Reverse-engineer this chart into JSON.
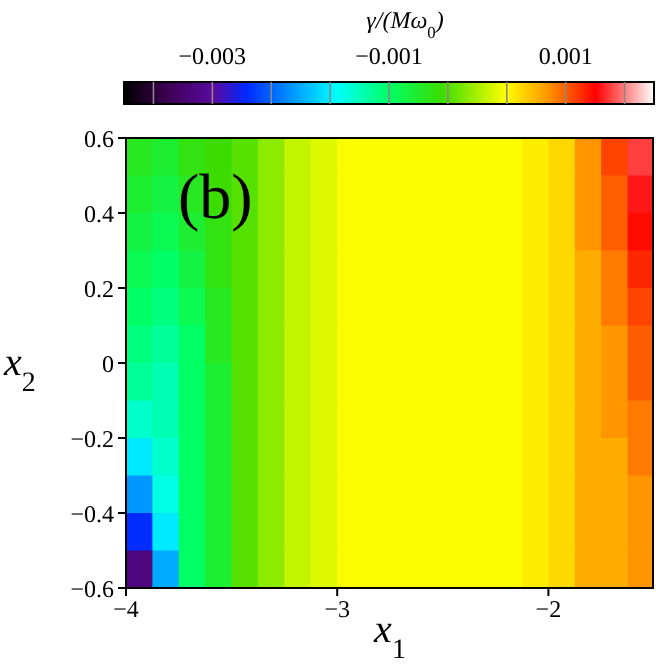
{
  "chart_data": {
    "type": "heatmap",
    "xlabel": "x$_{1}$",
    "ylabel": "x$_{2}$",
    "clabel": "γ/(Mω$_{0}$)",
    "annotations": [
      "(b)"
    ],
    "x": [
      -3.9375,
      -3.8125,
      -3.6875,
      -3.5625,
      -3.4375,
      -3.3125,
      -3.1875,
      -3.0625,
      -2.9375,
      -2.8125,
      -2.6875,
      -2.5625,
      -2.4375,
      -2.3125,
      -2.1875,
      -2.0625,
      -1.9375,
      -1.8125,
      -1.6875,
      -1.5625
    ],
    "y": [
      0.55,
      0.45,
      0.35,
      0.25,
      0.15,
      0.05,
      -0.05,
      -0.15,
      -0.25,
      -0.35,
      -0.45,
      -0.55
    ],
    "xlim": [
      -4,
      -1.5
    ],
    "xticks": [
      {
        "value": -4,
        "label": "−4"
      },
      {
        "value": -3,
        "label": "−3"
      },
      {
        "value": -2,
        "label": "−2"
      }
    ],
    "ylim": [
      -0.6,
      0.6
    ],
    "yticks": [
      {
        "value": -0.6,
        "label": "−0.6"
      },
      {
        "value": -0.4,
        "label": "−0.4"
      },
      {
        "value": -0.2,
        "label": "−0.2"
      },
      0,
      0.2,
      0.4,
      0.6
    ],
    "clim": [
      -0.004,
      0.002
    ],
    "cticks": [
      {
        "value": -0.003,
        "label": "−0.003"
      },
      {
        "value": -0.001,
        "label": "−0.001"
      },
      0.001
    ],
    "cells": [
      [
        -0.0006,
        -0.0007,
        -0.0005,
        -0.0004,
        -0.0003,
        -0.0001,
        0.0001,
        0.0002,
        0.0003,
        0.0003,
        0.0003,
        0.0003,
        0.0003,
        0.0003,
        0.0003,
        0.0004,
        0.0005,
        0.0008,
        0.0011,
        0.0015
      ],
      [
        -0.0007,
        -0.0008,
        -0.0006,
        -0.0004,
        -0.0003,
        -0.0001,
        0.0001,
        0.0002,
        0.0003,
        0.0003,
        0.0003,
        0.0003,
        0.0003,
        0.0003,
        0.0003,
        0.0004,
        0.0005,
        0.0008,
        0.001,
        0.0014
      ],
      [
        -0.0008,
        -0.0009,
        -0.0007,
        -0.0005,
        -0.0003,
        -0.0001,
        0.0001,
        0.0002,
        0.0003,
        0.0003,
        0.0003,
        0.0003,
        0.0003,
        0.0003,
        0.0003,
        0.0004,
        0.0005,
        0.0008,
        0.001,
        0.0013
      ],
      [
        -0.0009,
        -0.001,
        -0.0008,
        -0.0005,
        -0.0003,
        -0.0001,
        0.0001,
        0.0002,
        0.0003,
        0.0003,
        0.0003,
        0.0003,
        0.0003,
        0.0003,
        0.0003,
        0.0004,
        0.0005,
        0.0007,
        0.0009,
        0.0012
      ],
      [
        -0.001,
        -0.0011,
        -0.0009,
        -0.0006,
        -0.0003,
        -0.0001,
        0.0001,
        0.0002,
        0.0003,
        0.0003,
        0.0003,
        0.0003,
        0.0003,
        0.0003,
        0.0003,
        0.0004,
        0.0005,
        0.0007,
        0.0009,
        0.0011
      ],
      [
        -0.0011,
        -0.0012,
        -0.001,
        -0.0006,
        -0.0003,
        -0.0001,
        0.0001,
        0.0002,
        0.0003,
        0.0003,
        0.0003,
        0.0003,
        0.0003,
        0.0003,
        0.0003,
        0.0004,
        0.0005,
        0.0007,
        0.0008,
        0.001
      ],
      [
        -0.0012,
        -0.0013,
        -0.001,
        -0.0007,
        -0.0003,
        -0.0001,
        0.0001,
        0.0002,
        0.0003,
        0.0003,
        0.0003,
        0.0003,
        0.0003,
        0.0003,
        0.0003,
        0.0004,
        0.0005,
        0.0007,
        0.0008,
        0.001
      ],
      [
        -0.0014,
        -0.0013,
        -0.001,
        -0.0007,
        -0.0003,
        -0.0001,
        0.0001,
        0.0002,
        0.0003,
        0.0003,
        0.0003,
        0.0003,
        0.0003,
        0.0003,
        0.0003,
        0.0004,
        0.0005,
        0.0007,
        0.0008,
        0.0009
      ],
      [
        -0.0017,
        -0.0014,
        -0.001,
        -0.0007,
        -0.0003,
        -0.0001,
        0.0001,
        0.0002,
        0.0003,
        0.0003,
        0.0003,
        0.0003,
        0.0003,
        0.0003,
        0.0003,
        0.0004,
        0.0005,
        0.0007,
        0.0007,
        0.0009
      ],
      [
        -0.0021,
        -0.0015,
        -0.001,
        -0.0007,
        -0.0003,
        -0.0001,
        0.0001,
        0.0002,
        0.0003,
        0.0003,
        0.0003,
        0.0003,
        0.0003,
        0.0003,
        0.0003,
        0.0004,
        0.0005,
        0.0007,
        0.0007,
        0.0008
      ],
      [
        -0.0026,
        -0.0017,
        -0.001,
        -0.0007,
        -0.0003,
        -0.0001,
        0.0001,
        0.0002,
        0.0003,
        0.0003,
        0.0003,
        0.0003,
        0.0003,
        0.0003,
        0.0003,
        0.0004,
        0.0005,
        0.0007,
        0.0007,
        0.0008
      ],
      [
        -0.0032,
        -0.002,
        -0.001,
        -0.0007,
        -0.0003,
        -0.0001,
        0.0001,
        0.0002,
        0.0003,
        0.0003,
        0.0003,
        0.0003,
        0.0003,
        0.0003,
        0.0003,
        0.0004,
        0.0005,
        0.0007,
        0.0007,
        0.0008
      ]
    ]
  }
}
